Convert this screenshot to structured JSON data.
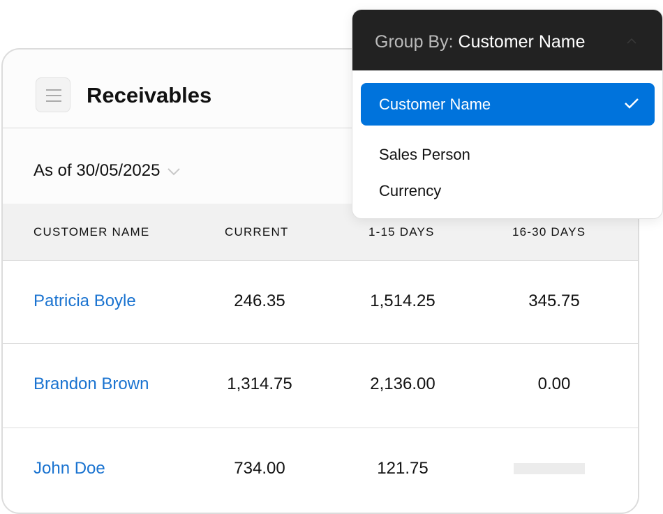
{
  "header": {
    "title": "Receivables",
    "menu_icon": "hamburger-menu-icon"
  },
  "filter": {
    "date_label": "As of 30/05/2025"
  },
  "table": {
    "columns": [
      "CUSTOMER NAME",
      "CURRENT",
      "1-15 DAYS",
      "16-30 DAYS"
    ],
    "rows": [
      {
        "name": "Patricia Boyle",
        "current": "246.35",
        "d1_15": "1,514.25",
        "d16_30": "345.75"
      },
      {
        "name": "Brandon Brown",
        "current": "1,314.75",
        "d1_15": "2,136.00",
        "d16_30": "0.00"
      },
      {
        "name": "John Doe",
        "current": "734.00",
        "d1_15": "121.75",
        "d16_30": null
      }
    ]
  },
  "group_by": {
    "label": "Group By:",
    "value": "Customer Name",
    "options": [
      {
        "label": "Customer Name",
        "selected": true
      },
      {
        "label": "Sales Person",
        "selected": false
      },
      {
        "label": "Currency",
        "selected": false
      }
    ],
    "accent": "#0073dc"
  }
}
